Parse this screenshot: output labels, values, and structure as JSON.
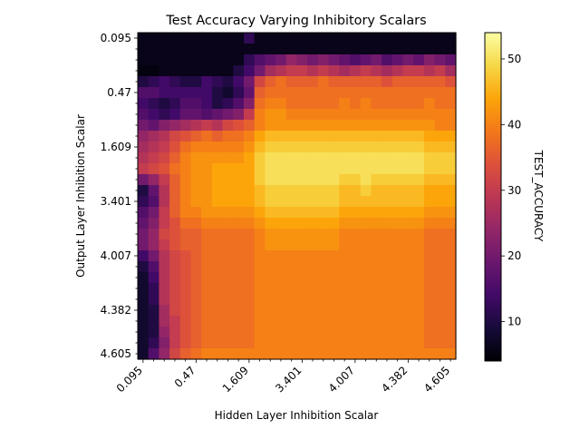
{
  "chart_data": {
    "type": "heatmap",
    "title": "Test Accuracy Varying Inhibitory Scalars",
    "xlabel": "Hidden Layer Inhibition Scalar",
    "ylabel": "Output Layer Inhibition Scalar",
    "colorbar_label": "TEST_ACCURACY",
    "colormap": "inferno",
    "x_tick_labels": [
      "0.095",
      "0.47",
      "1.609",
      "3.401",
      "4.007",
      "4.382",
      "4.605"
    ],
    "y_tick_labels": [
      "0.095",
      "0.47",
      "1.609",
      "3.401",
      "4.007",
      "4.382",
      "4.605"
    ],
    "colorbar_ticks": [
      10,
      20,
      30,
      40,
      50
    ],
    "value_range": [
      4,
      54
    ],
    "n_rows": 30,
    "n_cols": 30,
    "grid": false,
    "values": [
      [
        6,
        6,
        6,
        6,
        6,
        6,
        6,
        6,
        6,
        6,
        12,
        6,
        6,
        6,
        6,
        6,
        6,
        6,
        6,
        6,
        6,
        6,
        6,
        6,
        6,
        6,
        6,
        6,
        6,
        6
      ],
      [
        6,
        6,
        6,
        6,
        6,
        6,
        6,
        6,
        6,
        6,
        6,
        6,
        6,
        6,
        6,
        6,
        6,
        6,
        6,
        6,
        6,
        6,
        6,
        6,
        6,
        6,
        6,
        6,
        6,
        6
      ],
      [
        6,
        6,
        6,
        6,
        6,
        6,
        6,
        6,
        6,
        6,
        12,
        16,
        18,
        20,
        24,
        22,
        20,
        22,
        20,
        18,
        16,
        18,
        20,
        16,
        18,
        20,
        18,
        22,
        20,
        18
      ],
      [
        5,
        5,
        6,
        6,
        6,
        6,
        6,
        6,
        6,
        10,
        14,
        20,
        26,
        28,
        30,
        30,
        28,
        30,
        28,
        26,
        28,
        30,
        28,
        26,
        28,
        30,
        30,
        28,
        30,
        26
      ],
      [
        10,
        12,
        14,
        12,
        10,
        10,
        14,
        12,
        10,
        14,
        20,
        32,
        36,
        38,
        36,
        36,
        36,
        38,
        36,
        36,
        36,
        36,
        36,
        34,
        36,
        36,
        36,
        36,
        36,
        34
      ],
      [
        16,
        16,
        14,
        14,
        14,
        14,
        14,
        10,
        8,
        12,
        18,
        36,
        38,
        38,
        38,
        38,
        38,
        38,
        38,
        38,
        38,
        38,
        38,
        38,
        38,
        38,
        38,
        38,
        38,
        38
      ],
      [
        14,
        12,
        10,
        12,
        16,
        16,
        14,
        10,
        12,
        16,
        22,
        38,
        40,
        40,
        38,
        38,
        38,
        38,
        38,
        40,
        38,
        40,
        38,
        38,
        38,
        38,
        38,
        40,
        38,
        38
      ],
      [
        16,
        14,
        12,
        14,
        18,
        18,
        16,
        18,
        20,
        22,
        30,
        40,
        42,
        42,
        40,
        40,
        40,
        40,
        40,
        40,
        40,
        40,
        40,
        40,
        40,
        40,
        40,
        40,
        40,
        40
      ],
      [
        20,
        18,
        22,
        24,
        26,
        28,
        30,
        28,
        32,
        34,
        36,
        40,
        42,
        42,
        42,
        42,
        42,
        42,
        42,
        42,
        42,
        42,
        42,
        42,
        42,
        42,
        42,
        42,
        40,
        40
      ],
      [
        24,
        26,
        28,
        32,
        34,
        36,
        38,
        36,
        38,
        38,
        40,
        44,
        46,
        46,
        46,
        46,
        46,
        46,
        46,
        46,
        46,
        46,
        46,
        46,
        46,
        46,
        46,
        44,
        44,
        44
      ],
      [
        26,
        28,
        30,
        34,
        38,
        40,
        40,
        40,
        40,
        40,
        42,
        46,
        48,
        48,
        48,
        48,
        48,
        48,
        48,
        48,
        48,
        48,
        48,
        48,
        48,
        48,
        48,
        46,
        46,
        46
      ],
      [
        28,
        30,
        32,
        36,
        40,
        42,
        42,
        42,
        42,
        42,
        44,
        48,
        50,
        50,
        50,
        50,
        50,
        50,
        50,
        50,
        50,
        50,
        50,
        50,
        50,
        50,
        50,
        48,
        48,
        48
      ],
      [
        30,
        32,
        34,
        38,
        40,
        42,
        42,
        44,
        44,
        44,
        44,
        48,
        50,
        50,
        50,
        50,
        50,
        50,
        50,
        50,
        50,
        50,
        50,
        50,
        50,
        50,
        50,
        48,
        48,
        48
      ],
      [
        20,
        24,
        30,
        36,
        40,
        42,
        42,
        44,
        44,
        44,
        44,
        48,
        50,
        50,
        50,
        50,
        50,
        50,
        50,
        48,
        48,
        50,
        48,
        48,
        48,
        48,
        48,
        46,
        46,
        46
      ],
      [
        10,
        18,
        28,
        36,
        40,
        42,
        42,
        44,
        44,
        44,
        44,
        46,
        48,
        48,
        48,
        48,
        48,
        48,
        48,
        46,
        46,
        48,
        46,
        46,
        46,
        46,
        46,
        44,
        44,
        44
      ],
      [
        12,
        16,
        28,
        36,
        40,
        42,
        42,
        44,
        44,
        44,
        44,
        46,
        48,
        48,
        48,
        48,
        48,
        48,
        48,
        46,
        46,
        46,
        46,
        46,
        46,
        46,
        46,
        44,
        44,
        44
      ],
      [
        16,
        20,
        30,
        36,
        40,
        40,
        42,
        42,
        42,
        42,
        42,
        44,
        46,
        46,
        46,
        46,
        46,
        46,
        46,
        44,
        44,
        44,
        44,
        44,
        44,
        44,
        44,
        42,
        42,
        42
      ],
      [
        18,
        22,
        30,
        34,
        38,
        38,
        40,
        40,
        40,
        40,
        40,
        42,
        44,
        44,
        44,
        44,
        44,
        44,
        44,
        42,
        42,
        42,
        42,
        42,
        42,
        42,
        42,
        40,
        40,
        40
      ],
      [
        20,
        24,
        32,
        34,
        36,
        36,
        38,
        38,
        38,
        38,
        38,
        40,
        42,
        42,
        42,
        42,
        42,
        42,
        42,
        40,
        40,
        40,
        40,
        40,
        40,
        40,
        40,
        38,
        38,
        38
      ],
      [
        20,
        24,
        30,
        34,
        36,
        36,
        38,
        38,
        38,
        38,
        38,
        40,
        42,
        42,
        42,
        42,
        42,
        42,
        42,
        40,
        40,
        40,
        40,
        40,
        40,
        40,
        40,
        38,
        38,
        38
      ],
      [
        14,
        20,
        28,
        32,
        34,
        36,
        38,
        38,
        38,
        38,
        38,
        40,
        40,
        40,
        40,
        40,
        40,
        40,
        40,
        40,
        40,
        40,
        40,
        40,
        40,
        40,
        40,
        38,
        38,
        38
      ],
      [
        10,
        16,
        28,
        32,
        34,
        36,
        38,
        38,
        38,
        38,
        38,
        40,
        40,
        40,
        40,
        40,
        40,
        40,
        40,
        40,
        40,
        40,
        40,
        40,
        40,
        40,
        40,
        38,
        38,
        38
      ],
      [
        8,
        14,
        28,
        32,
        34,
        36,
        38,
        38,
        38,
        38,
        38,
        40,
        40,
        40,
        40,
        40,
        40,
        40,
        40,
        40,
        40,
        40,
        40,
        40,
        40,
        40,
        40,
        38,
        38,
        38
      ],
      [
        8,
        12,
        28,
        32,
        34,
        36,
        38,
        38,
        38,
        38,
        38,
        40,
        40,
        40,
        40,
        40,
        40,
        40,
        40,
        40,
        40,
        40,
        40,
        40,
        40,
        40,
        40,
        38,
        38,
        38
      ],
      [
        8,
        12,
        28,
        32,
        34,
        36,
        38,
        38,
        38,
        38,
        38,
        40,
        40,
        40,
        40,
        40,
        40,
        40,
        40,
        40,
        40,
        40,
        40,
        40,
        40,
        40,
        40,
        38,
        38,
        38
      ],
      [
        8,
        10,
        26,
        32,
        34,
        36,
        38,
        38,
        38,
        38,
        38,
        40,
        40,
        40,
        40,
        40,
        40,
        40,
        40,
        40,
        40,
        40,
        40,
        40,
        40,
        40,
        40,
        38,
        38,
        38
      ],
      [
        8,
        10,
        26,
        30,
        34,
        36,
        38,
        38,
        38,
        38,
        38,
        40,
        40,
        40,
        40,
        40,
        40,
        40,
        40,
        40,
        40,
        40,
        40,
        40,
        40,
        40,
        40,
        38,
        38,
        38
      ],
      [
        8,
        10,
        24,
        30,
        34,
        36,
        38,
        38,
        38,
        38,
        38,
        40,
        40,
        40,
        40,
        40,
        40,
        40,
        40,
        40,
        40,
        40,
        40,
        40,
        40,
        40,
        40,
        38,
        38,
        38
      ],
      [
        8,
        12,
        22,
        30,
        34,
        36,
        38,
        38,
        38,
        38,
        38,
        40,
        40,
        40,
        40,
        40,
        40,
        40,
        40,
        40,
        40,
        40,
        40,
        40,
        40,
        40,
        40,
        38,
        38,
        38
      ],
      [
        8,
        16,
        24,
        32,
        36,
        38,
        40,
        40,
        40,
        40,
        40,
        40,
        40,
        40,
        40,
        40,
        40,
        40,
        40,
        40,
        40,
        40,
        40,
        40,
        40,
        40,
        40,
        40,
        40,
        40
      ]
    ]
  }
}
